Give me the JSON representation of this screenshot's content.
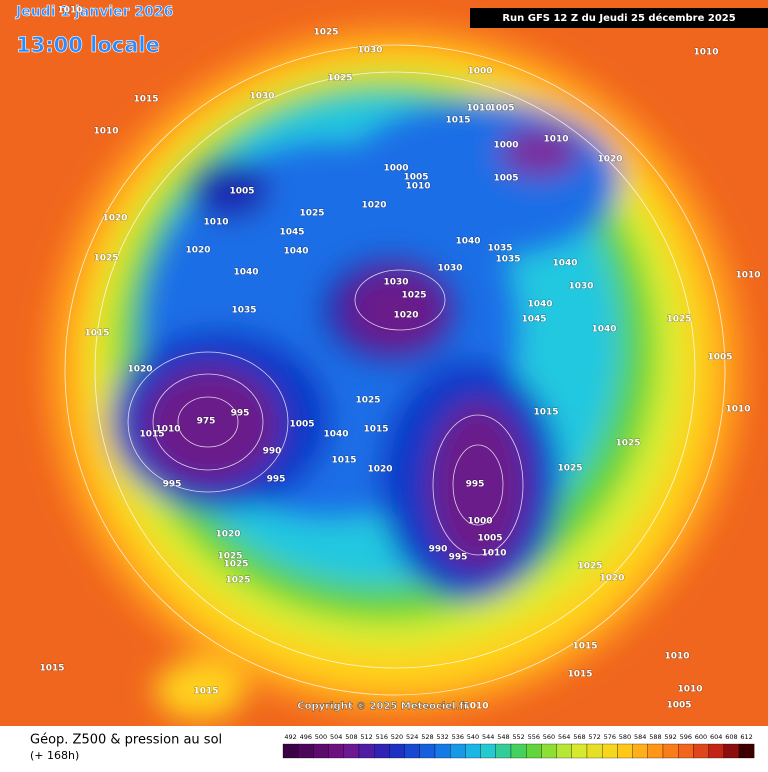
{
  "header": {
    "date": "Jeudi 1 janvier 2026",
    "time": "13:00 locale"
  },
  "run": "Run GFS 12 Z du Jeudi 25 décembre 2025",
  "pressure_labels": [
    "1010",
    "1025",
    "1030",
    "1025",
    "1000",
    "1010",
    "1015",
    "1030",
    "1010",
    "1005",
    "1015",
    "1010",
    "1010",
    "1000",
    "1020",
    "1000",
    "1005",
    "1010",
    "1005",
    "1005",
    "1020",
    "1025",
    "1010",
    "1020",
    "1045",
    "1040",
    "1035",
    "1020",
    "1040",
    "1035",
    "1025",
    "1040",
    "1030",
    "1040",
    "1030",
    "1025",
    "1030",
    "1035",
    "1040",
    "1020",
    "1045",
    "1040",
    "1025",
    "1015",
    "1010",
    "1005",
    "1020",
    "975",
    "995",
    "1010",
    "1015",
    "1025",
    "1010",
    "1015",
    "1005",
    "1040",
    "1015",
    "990",
    "1025",
    "1015",
    "1020",
    "1025",
    "995",
    "995",
    "995",
    "1000",
    "1005",
    "990",
    "995",
    "1010",
    "1020",
    "1025",
    "1025",
    "1025",
    "1025",
    "1020",
    "1015",
    "1015",
    "1010",
    "1015",
    "1015",
    "1010",
    "1005",
    "1010"
  ],
  "copyright": "Copyright © 2025 Meteociel.fr",
  "legend": {
    "title": "Géop. Z500 & pression au sol",
    "subtitle": "(+ 168h)"
  },
  "colorbar": {
    "ticks": [
      492,
      496,
      500,
      504,
      508,
      512,
      516,
      520,
      524,
      528,
      532,
      536,
      540,
      544,
      548,
      552,
      556,
      560,
      564,
      568,
      572,
      576,
      580,
      584,
      588,
      592,
      596,
      600,
      604,
      608,
      612
    ]
  }
}
